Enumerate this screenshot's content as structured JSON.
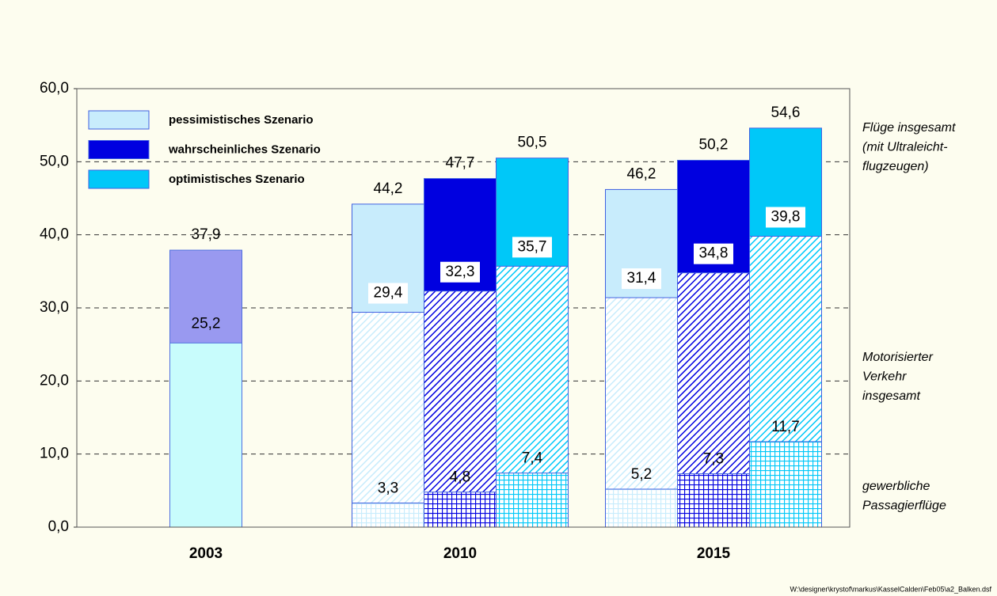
{
  "chart_data": {
    "type": "bar",
    "categories": [
      "2003",
      "2010",
      "2015"
    ],
    "layers": [
      [
        "gewerbliche",
        "Passagierflüge"
      ],
      [
        "Motorisierter",
        "Verkehr",
        "insgesamt"
      ],
      [
        "Flüge insgesamt",
        "(mit Ultraleicht-",
        " flugzeugen)"
      ]
    ],
    "series": [
      {
        "name": "pessimistisches Szenario",
        "color": "#c8ecfc",
        "values": [
          null,
          [
            3.3,
            29.4,
            44.2
          ],
          [
            5.2,
            31.4,
            46.2
          ]
        ],
        "value_labels": [
          null,
          [
            "3,3",
            "29,4",
            "44,2"
          ],
          [
            "5,2",
            "31,4",
            "46,2"
          ]
        ]
      },
      {
        "name": "wahrscheinliches Szenario",
        "color": "#0000e0",
        "values": [
          null,
          [
            4.8,
            32.3,
            47.7
          ],
          [
            7.3,
            34.8,
            50.2
          ]
        ],
        "value_labels": [
          null,
          [
            "4,8",
            "32,3",
            "47,7"
          ],
          [
            "7,3",
            "34,8",
            "50,2"
          ]
        ]
      },
      {
        "name": "optimistisches Szenario",
        "color": "#00c8f8",
        "values": [
          null,
          [
            7.4,
            35.7,
            50.5
          ],
          [
            11.7,
            39.8,
            54.6
          ]
        ],
        "value_labels": [
          null,
          [
            "7,4",
            "35,7",
            "50,5"
          ],
          [
            "11,7",
            "39,8",
            "54,6"
          ]
        ]
      }
    ],
    "bars_2003": {
      "values": [
        null,
        25.2,
        37.9
      ],
      "value_labels": [
        null,
        "25,2",
        "37,9"
      ],
      "colors": [
        null,
        "#c8fcfc",
        "#9999f0"
      ]
    },
    "ylim": [
      0,
      60
    ],
    "yticks": [
      {
        "value": 0,
        "label": "0,0"
      },
      {
        "value": 10,
        "label": "10,0"
      },
      {
        "value": 20,
        "label": "20,0"
      },
      {
        "value": 30,
        "label": "30,0"
      },
      {
        "value": 40,
        "label": "40,0"
      },
      {
        "value": 50,
        "label": "50,0"
      },
      {
        "value": 60,
        "label": "60,0"
      }
    ],
    "grid": true,
    "legend": "top-left",
    "footer": "W:\\designer\\krystof\\markus\\KasselCalden\\Feb05\\a2_Balken.dsf"
  }
}
